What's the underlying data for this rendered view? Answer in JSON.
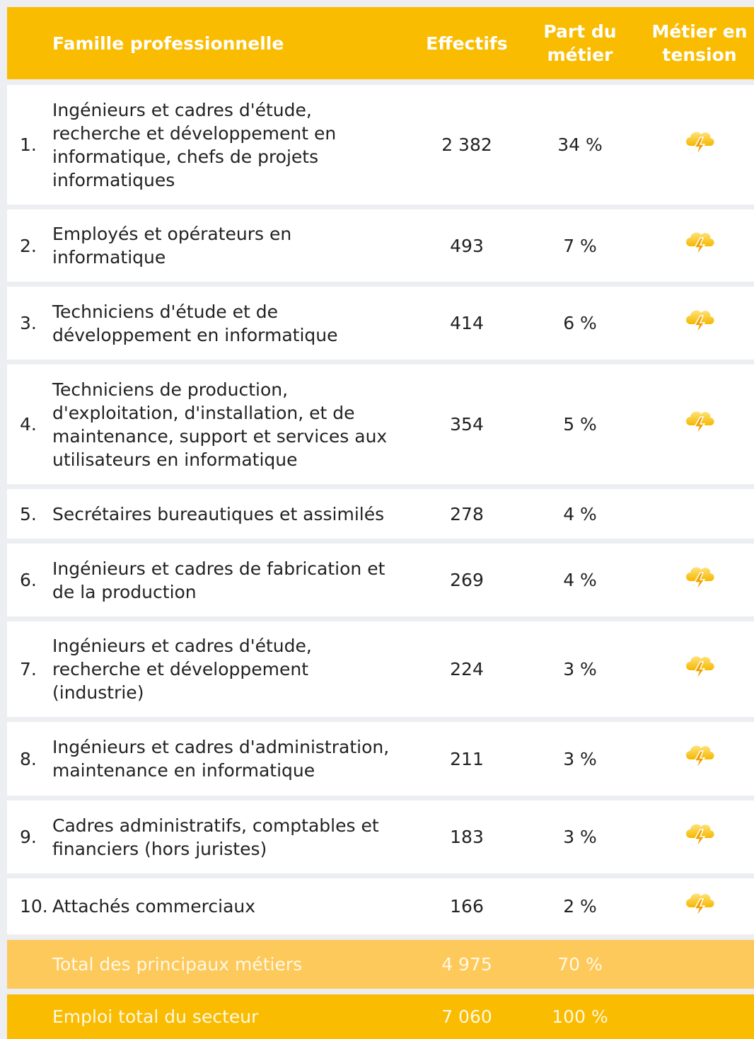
{
  "header": {
    "famille": "Famille professionnelle",
    "effectifs": "Effectifs",
    "part": "Part du métier",
    "tension": "Métier en tension"
  },
  "rows": [
    {
      "rank": "1.",
      "label": "Ingénieurs et cadres d'étude, recherche et développement en informatique, chefs de projets informatiques",
      "effectifs": "2 382",
      "part": "34 %",
      "tension": true
    },
    {
      "rank": "2.",
      "label": "Employés et opérateurs en informatique",
      "effectifs": "493",
      "part": "7 %",
      "tension": true
    },
    {
      "rank": "3.",
      "label": "Techniciens d'étude et de développement en informatique",
      "effectifs": "414",
      "part": "6 %",
      "tension": true
    },
    {
      "rank": "4.",
      "label": "Techniciens de production, d'exploitation, d'installation, et de maintenance, support et services aux utilisateurs en informatique",
      "effectifs": "354",
      "part": "5 %",
      "tension": true
    },
    {
      "rank": "5.",
      "label": "Secrétaires bureautiques et assimilés",
      "effectifs": "278",
      "part": "4 %",
      "tension": false
    },
    {
      "rank": "6.",
      "label": "Ingénieurs et cadres de fabrication et de la production",
      "effectifs": "269",
      "part": "4 %",
      "tension": true
    },
    {
      "rank": "7.",
      "label": "Ingénieurs et cadres d'étude, recherche et développement (industrie)",
      "effectifs": "224",
      "part": "3 %",
      "tension": true
    },
    {
      "rank": "8.",
      "label": "Ingénieurs et cadres d'administration, maintenance en informatique",
      "effectifs": "211",
      "part": "3 %",
      "tension": true
    },
    {
      "rank": "9.",
      "label": "Cadres administratifs, comptables et financiers (hors juristes)",
      "effectifs": "183",
      "part": "3 %",
      "tension": true
    },
    {
      "rank": "10.",
      "label": "Attachés commerciaux",
      "effectifs": "166",
      "part": "2 %",
      "tension": true
    }
  ],
  "totals": [
    {
      "label": "Total des principaux métiers",
      "effectifs": "4 975",
      "part": "70 %"
    },
    {
      "label": "Emploi total du secteur",
      "effectifs": "7 060",
      "part": "100 %"
    }
  ]
}
